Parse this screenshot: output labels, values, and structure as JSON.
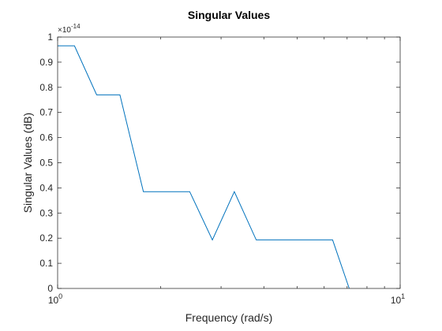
{
  "chart_data": {
    "type": "line",
    "title": "Singular Values",
    "xlabel": "Frequency (rad/s)",
    "ylabel": "Singular Values (dB)",
    "x_scale": "log",
    "xlim": [
      1,
      10
    ],
    "ylim": [
      0,
      1
    ],
    "y_multiplier": "×10",
    "y_multiplier_exponent": "-14",
    "x_ticks": [
      1,
      10
    ],
    "x_tick_labels": [
      {
        "base": "10",
        "exp": "0"
      },
      {
        "base": "10",
        "exp": "1"
      }
    ],
    "x_minor_ticks": [
      2,
      3,
      4,
      5,
      6,
      7,
      8,
      9
    ],
    "y_ticks": [
      0,
      0.1,
      0.2,
      0.3,
      0.4,
      0.5,
      0.6,
      0.7,
      0.8,
      0.9,
      1
    ],
    "y_tick_labels": [
      "0",
      "0.1",
      "0.2",
      "0.3",
      "0.4",
      "0.5",
      "0.6",
      "0.7",
      "0.8",
      "0.9",
      "1"
    ],
    "line_color": "#0072BD",
    "series": [
      {
        "x": [
          1.0,
          1.12,
          1.3,
          1.52,
          1.78,
          2.43,
          2.83,
          3.28,
          3.8,
          6.35,
          7.1
        ],
        "y": [
          0.965,
          0.965,
          0.77,
          0.77,
          0.385,
          0.385,
          0.193,
          0.385,
          0.193,
          0.193,
          0.0
        ]
      }
    ]
  }
}
